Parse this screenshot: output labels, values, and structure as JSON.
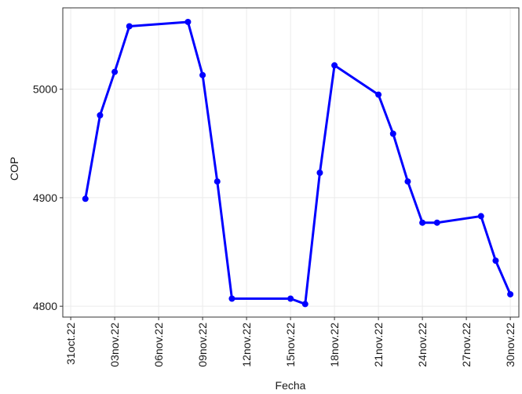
{
  "chart_data": {
    "type": "line",
    "x_label": "Fecha",
    "y_label": "COP",
    "x": [
      "2022-11-01",
      "2022-11-02",
      "2022-11-03",
      "2022-11-04",
      "2022-11-08",
      "2022-11-09",
      "2022-11-10",
      "2022-11-11",
      "2022-11-15",
      "2022-11-16",
      "2022-11-17",
      "2022-11-18",
      "2022-11-21",
      "2022-11-22",
      "2022-11-23",
      "2022-11-24",
      "2022-11-25",
      "2022-11-28",
      "2022-11-29",
      "2022-11-30"
    ],
    "series": [
      {
        "color": "#0000ff",
        "values": [
          4899,
          4976,
          5016,
          5058,
          5062,
          5013,
          4915,
          4807,
          4807,
          4802,
          4923,
          5022,
          4995,
          4959,
          4915,
          4877,
          4877,
          4883,
          4842,
          4811
        ]
      }
    ],
    "xlim": [
      "2022-10-30T11:00",
      "2022-11-30T14:00"
    ],
    "xticks": [
      {
        "value": "2022-10-31",
        "label": "31oct.22"
      },
      {
        "value": "2022-11-03",
        "label": "03nov.22"
      },
      {
        "value": "2022-11-06",
        "label": "06nov.22"
      },
      {
        "value": "2022-11-09",
        "label": "09nov.22"
      },
      {
        "value": "2022-11-12",
        "label": "12nov.22"
      },
      {
        "value": "2022-11-15",
        "label": "15nov.22"
      },
      {
        "value": "2022-11-18",
        "label": "18nov.22"
      },
      {
        "value": "2022-11-21",
        "label": "21nov.22"
      },
      {
        "value": "2022-11-24",
        "label": "24nov.22"
      },
      {
        "value": "2022-11-27",
        "label": "27nov.22"
      },
      {
        "value": "2022-11-30",
        "label": "30nov.22"
      }
    ],
    "ylim": [
      4790,
      5075
    ],
    "yticks": [
      4800,
      4900,
      5000
    ],
    "grid": true
  }
}
